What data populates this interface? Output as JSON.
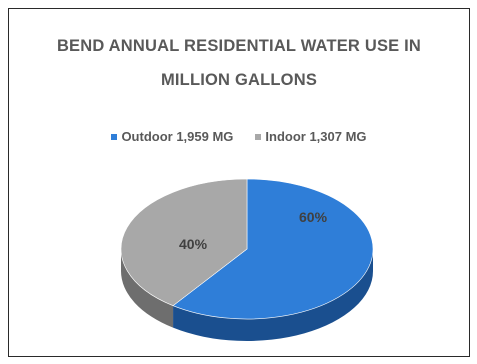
{
  "chart_data": {
    "type": "pie",
    "title_line1": "BEND ANNUAL RESIDENTIAL WATER USE  IN",
    "title_line2": "MILLION GALLONS",
    "slices": [
      {
        "label": "Outdoor 1,959 MG",
        "value": 1959,
        "percent_label": "60%",
        "color": "#2f7ed8",
        "dark": "#1a4f8f"
      },
      {
        "label": "Indoor 1,307 MG",
        "value": 1307,
        "percent_label": "40%",
        "color": "#a8a8a8",
        "dark": "#6e6e6e"
      }
    ],
    "legend_position": "top",
    "style": "3d"
  }
}
